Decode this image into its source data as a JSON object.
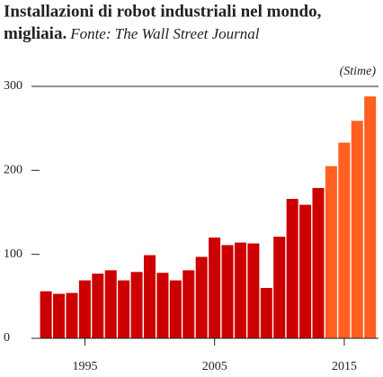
{
  "chart_data": {
    "type": "bar",
    "title": [
      "Installazioni di robot industriali nel mondo,",
      "migliaia."
    ],
    "subtitle": "Fonte: The Wall Street Journal",
    "annotation": "(Stime)",
    "categories": [
      null,
      null,
      null,
      "1995",
      null,
      null,
      null,
      null,
      null,
      null,
      null,
      null,
      null,
      "2005",
      null,
      null,
      null,
      null,
      null,
      null,
      null,
      null,
      null,
      "2015",
      null,
      null
    ],
    "values": [
      56,
      53,
      54,
      69,
      77,
      81,
      69,
      79,
      99,
      78,
      69,
      81,
      97,
      120,
      111,
      114,
      113,
      60,
      121,
      166,
      159,
      179,
      205,
      233,
      259,
      288
    ],
    "colors": [
      "#cc0000",
      "#cc0000",
      "#cc0000",
      "#cc0000",
      "#cc0000",
      "#cc0000",
      "#cc0000",
      "#cc0000",
      "#cc0000",
      "#cc0000",
      "#cc0000",
      "#cc0000",
      "#cc0000",
      "#cc0000",
      "#cc0000",
      "#cc0000",
      "#cc0000",
      "#cc0000",
      "#cc0000",
      "#cc0000",
      "#cc0000",
      "#cc0000",
      "#ff5f1f",
      "#ff5f1f",
      "#ff5f1f",
      "#ff5f1f"
    ],
    "ylim": [
      0,
      300
    ],
    "yticks": [
      0,
      100,
      200,
      300
    ],
    "grid": false
  }
}
